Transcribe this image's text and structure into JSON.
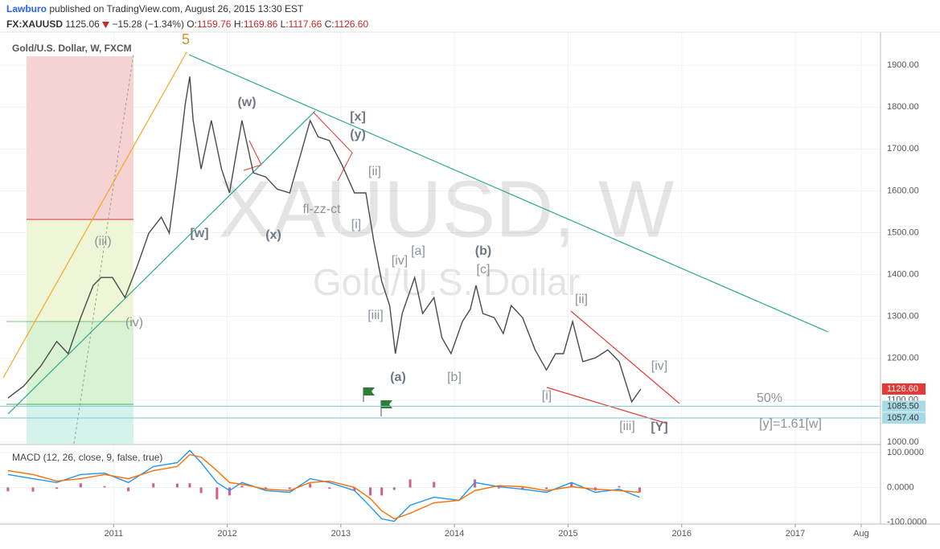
{
  "header": {
    "author": "Lawburo",
    "published": "published on TradingView.com, August 26, 2015 13:30 EST",
    "symbol": "FX:XAUUSD",
    "price": "1125.06",
    "change": "−15.28 (−1.34%)",
    "ohlc": [
      {
        "label": "O:",
        "value": "1159.76"
      },
      {
        "label": "H:",
        "value": "1169.86"
      },
      {
        "label": "L:",
        "value": "1117.66"
      },
      {
        "label": "C:",
        "value": "1126.60"
      }
    ]
  },
  "chart_data": [
    {
      "type": "line",
      "title": "Gold/U.S. Dollar, W, FXCM",
      "watermark": [
        "XAUUSD, W",
        "Gold/U.S. Dollar"
      ],
      "x": [
        2010.07,
        2010.21,
        2010.36,
        2010.5,
        2010.6,
        2010.71,
        2010.82,
        2010.89,
        2010.99,
        2011.1,
        2011.21,
        2011.31,
        2011.42,
        2011.49,
        2011.56,
        2011.63,
        2011.67,
        2011.7,
        2011.77,
        2011.86,
        2011.95,
        2012.02,
        2012.13,
        2012.23,
        2012.34,
        2012.44,
        2012.55,
        2012.66,
        2012.73,
        2012.8,
        2012.9,
        2013.01,
        2013.12,
        2013.22,
        2013.29,
        2013.36,
        2013.43,
        2013.48,
        2013.54,
        2013.65,
        2013.72,
        2013.82,
        2013.89,
        2013.97,
        2014.07,
        2014.14,
        2014.19,
        2014.25,
        2014.35,
        2014.43,
        2014.5,
        2014.6,
        2014.71,
        2014.81,
        2014.89,
        2014.96,
        2015.04,
        2015.13,
        2015.24,
        2015.35,
        2015.45,
        2015.56,
        2015.61,
        2015.64
      ],
      "series": [
        {
          "color": "#4a4a4a",
          "values": [
            1105,
            1134,
            1182,
            1240,
            1211,
            1297,
            1374,
            1393,
            1393,
            1345,
            1422,
            1499,
            1537,
            1499,
            1643,
            1806,
            1873,
            1768,
            1652,
            1768,
            1652,
            1595,
            1768,
            1643,
            1633,
            1604,
            1595,
            1700,
            1768,
            1729,
            1720,
            1662,
            1595,
            1595,
            1480,
            1384,
            1326,
            1211,
            1307,
            1393,
            1307,
            1345,
            1249,
            1211,
            1288,
            1317,
            1374,
            1307,
            1297,
            1259,
            1326,
            1297,
            1220,
            1172,
            1211,
            1211,
            1288,
            1192,
            1201,
            1220,
            1192,
            1096,
            1115,
            1126.6
          ]
        }
      ],
      "xlim": [
        2010,
        2017.75
      ],
      "ylim": [
        996,
        1979
      ],
      "yticks": [
        {
          "value": 1000,
          "label": "1000.00"
        },
        {
          "value": 1100,
          "label": "1100.00"
        },
        {
          "value": 1200,
          "label": "1200.00"
        },
        {
          "value": 1300,
          "label": "1300.00"
        },
        {
          "value": 1400,
          "label": "1400.00"
        },
        {
          "value": 1500,
          "label": "1500.00"
        },
        {
          "value": 1600,
          "label": "1600.00"
        },
        {
          "value": 1700,
          "label": "1700.00"
        },
        {
          "value": 1800,
          "label": "1800.00"
        },
        {
          "value": 1900,
          "label": "1900.00"
        }
      ],
      "grid": true,
      "levels": [
        {
          "value": 1126.6,
          "label": "1126.60",
          "color": "#e53935",
          "line": false
        },
        {
          "value": 1085.5,
          "label": "1085.50",
          "color": "#a9dbe6",
          "line": true
        },
        {
          "value": 1057.4,
          "label": "1057.40",
          "color": "#a9dbe6",
          "line": true
        }
      ],
      "annotations": [
        "5",
        "(w)",
        "[x]",
        "(y)",
        "[ii]",
        "fl-zz-ct",
        "[i]",
        "[w]",
        "(x)",
        "(iii)",
        "(iv)",
        "[iv]",
        "[a]",
        "(b)",
        "[c]",
        "[iii]",
        "(a)",
        "[b]",
        "[ii]",
        "[iv]",
        "[i]",
        "[iii]",
        "[Y]",
        "50%",
        "[y]=1.61[w]"
      ]
    },
    {
      "type": "macd",
      "title": "MACD (12, 26, close, 9, false, true)",
      "x": [
        2010.07,
        2010.29,
        2010.5,
        2010.71,
        2010.92,
        2011.13,
        2011.35,
        2011.56,
        2011.67,
        2011.77,
        2011.91,
        2012.02,
        2012.13,
        2012.34,
        2012.55,
        2012.73,
        2012.9,
        2013.12,
        2013.26,
        2013.36,
        2013.47,
        2013.61,
        2013.82,
        2014.04,
        2014.18,
        2014.39,
        2014.6,
        2014.81,
        2015.03,
        2015.24,
        2015.45,
        2015.63
      ],
      "series": [
        {
          "type": "bar",
          "color": "#c2185b",
          "values": [
            -11,
            -12,
            -4,
            12,
            4,
            -11,
            12,
            11,
            12,
            -16,
            -34,
            -23,
            5,
            -4,
            -5,
            11,
            -4,
            -9,
            -23,
            -23,
            -7,
            23,
            16,
            0,
            23,
            -3,
            -7,
            -5,
            12,
            -9,
            4,
            -14
          ]
        },
        {
          "type": "line",
          "color": "#2196f3",
          "values": [
            37,
            25,
            14,
            37,
            41,
            14,
            60,
            71,
            106,
            71,
            14,
            -9,
            14,
            -9,
            -14,
            25,
            14,
            -9,
            -55,
            -90,
            -97,
            -51,
            -28,
            -37,
            14,
            2,
            -5,
            -14,
            14,
            -14,
            -5,
            -28
          ]
        },
        {
          "type": "line",
          "color": "#ff6d00",
          "values": [
            48,
            37,
            18,
            25,
            37,
            25,
            48,
            60,
            94,
            87,
            48,
            14,
            9,
            -5,
            -9,
            14,
            18,
            0,
            -32,
            -67,
            -90,
            -74,
            -44,
            -37,
            -9,
            5,
            2,
            -9,
            2,
            -5,
            -9,
            -14
          ]
        }
      ],
      "xlim": [
        2010,
        2017.75
      ],
      "ylim": [
        -105,
        123
      ],
      "yticks": [
        {
          "value": 100,
          "label": "100.0000"
        },
        {
          "value": 0,
          "label": "0.0000"
        },
        {
          "value": -100,
          "label": "-100.0000"
        }
      ],
      "xticks": [
        2011,
        2012,
        2013,
        2014,
        2015,
        2016,
        2017,
        {
          "value": 2017.58,
          "label": "Aug"
        }
      ],
      "grid": true
    }
  ]
}
